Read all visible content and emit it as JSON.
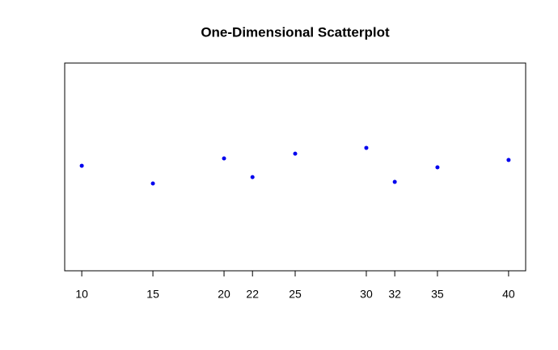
{
  "chart_data": {
    "type": "scatter",
    "title": "One-Dimensional Scatterplot",
    "x": [
      10,
      15,
      20,
      22,
      25,
      30,
      32,
      35,
      40
    ],
    "y": [
      1.006,
      0.914,
      1.044,
      0.947,
      1.069,
      1.099,
      0.922,
      0.998,
      1.036
    ],
    "color": "#0000ee",
    "xlim": [
      8.8,
      41.2
    ],
    "xticks": [
      10,
      15,
      20,
      22,
      25,
      30,
      32,
      35,
      40
    ],
    "ylim": [
      0.46,
      1.54
    ],
    "grid": false
  }
}
